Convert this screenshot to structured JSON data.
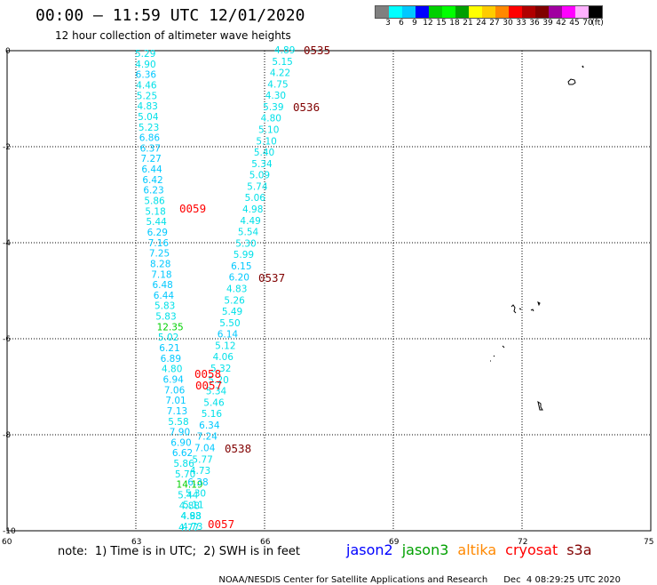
{
  "title": "00:00 – 11:59 UTC 12/01/2020",
  "subtitle": "12 hour collection of altimeter wave heights",
  "colorbar": {
    "colors": [
      "#808080",
      "#00ffff",
      "#00c8ff",
      "#0000ff",
      "#00d000",
      "#00ff00",
      "#00a000",
      "#ffff00",
      "#ffcc00",
      "#ff8800",
      "#ff0000",
      "#b00000",
      "#800000",
      "#a000a0",
      "#ff00ff",
      "#ffb0ff",
      "#000000"
    ],
    "labels": [
      "3",
      "6",
      "9",
      "12",
      "15",
      "18",
      "21",
      "24",
      "27",
      "30",
      "33",
      "36",
      "39",
      "42",
      "45",
      "70",
      "(ft)"
    ]
  },
  "axes": {
    "x_ticks": [
      "60",
      "63",
      "66",
      "69",
      "72",
      "75"
    ],
    "y_ticks": [
      "0",
      "-2",
      "-4",
      "-6",
      "-8",
      "-10"
    ]
  },
  "passes": [
    {
      "label": "0535",
      "color": "#800000"
    },
    {
      "label": "0536",
      "color": "#800000"
    },
    {
      "label": "0059",
      "color": "#ff0000"
    },
    {
      "label": "0537",
      "color": "#800000"
    },
    {
      "label": "0058",
      "color": "#ff0000"
    },
    {
      "label": "0057",
      "color": "#ff0000"
    },
    {
      "label": "0538",
      "color": "#800000"
    },
    {
      "label": "0057",
      "color": "#ff0000"
    }
  ],
  "track1": [
    "5.29",
    "4.90",
    "6.36",
    "4.46",
    "5.25",
    "4.83",
    "5.04",
    "5.23",
    "6.86",
    "6.37",
    "7.27",
    "6.44",
    "6.42",
    "6.23",
    "5.86",
    "5.18",
    "5.44",
    "6.29",
    "7.16",
    "7.25",
    "8.28",
    "7.18",
    "6.48",
    "6.44",
    "5.83",
    "5.83",
    "12.35",
    "5.02",
    "6.21",
    "6.89",
    "4.80",
    "6.94",
    "7.06",
    "7.01",
    "7.13",
    "5.58",
    "7.90",
    "6.90",
    "6.62",
    "5.86",
    "5.70",
    "14.19",
    "5.44",
    "4.88",
    "4.93",
    "4.73"
  ],
  "track2": [
    "4.89",
    "5.15",
    "4.22",
    "4.75",
    "4.30",
    "5.39",
    "4.80",
    "5.10",
    "5.10",
    "5.40",
    "5.34",
    "5.09",
    "5.74",
    "5.06",
    "4.98",
    "4.49",
    "5.54",
    "5.30",
    "5.99",
    "6.15",
    "6.20",
    "4.83",
    "5.26",
    "5.49",
    "5.50",
    "6.14",
    "5.12",
    "4.06",
    "5.32",
    "5.20",
    "5.34",
    "5.46",
    "5.16",
    "6.34",
    "7.24",
    "7.04",
    "5.77",
    "4.73",
    "6.38",
    "5.30",
    "5.11",
    "4.88",
    "4.77"
  ],
  "note": "note:  1) Time is in UTC;  2) SWH is in feet",
  "legend": [
    {
      "name": "jason2",
      "color": "#0000ff"
    },
    {
      "name": "jason3",
      "color": "#00a000"
    },
    {
      "name": "altika",
      "color": "#ff8800"
    },
    {
      "name": "cryosat",
      "color": "#ff0000"
    },
    {
      "name": "s3a",
      "color": "#800000"
    }
  ],
  "credit_org": "NOAA/NESDIS Center for Satellite Applications and Research",
  "credit_time": "Dec  4 08:29:25 UTC 2020"
}
